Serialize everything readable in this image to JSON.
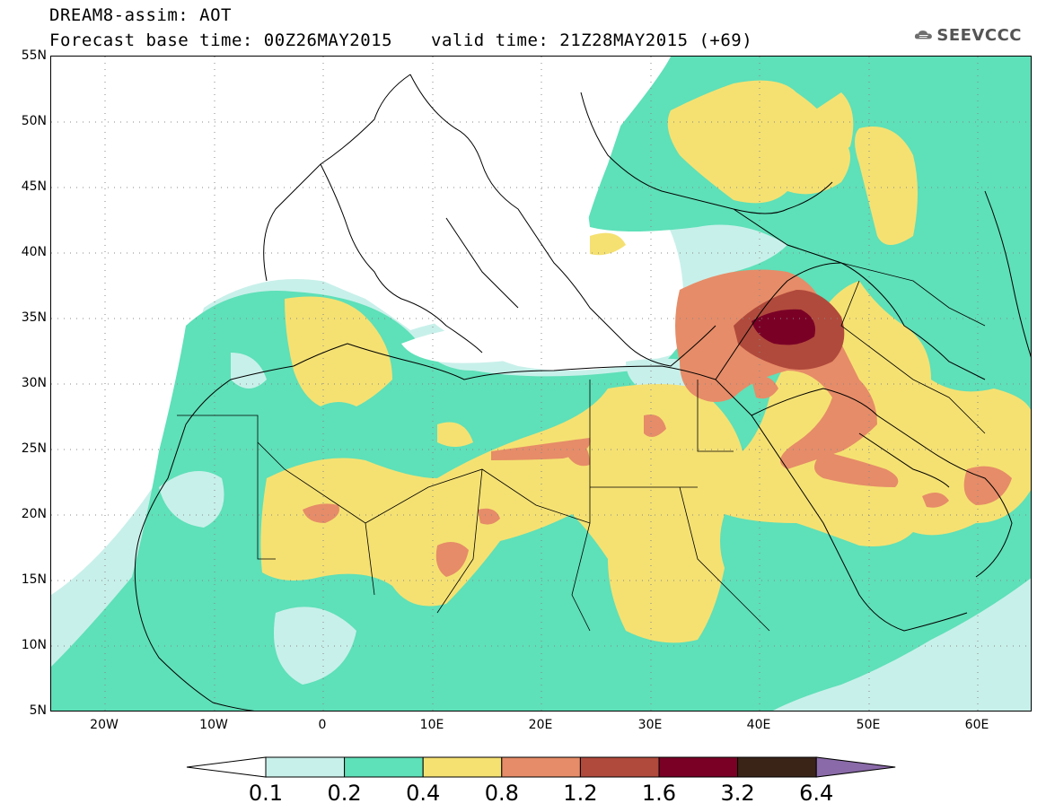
{
  "header": {
    "line1": "DREAM8-assim: AOT",
    "line2": "Forecast base time: 00Z26MAY2015",
    "valid": "valid time: 21Z28MAY2015 (+69)",
    "logo_text": "SEEVCCC",
    "logo_icon": "cloud-icon"
  },
  "map": {
    "lat_labels": [
      "55N",
      "50N",
      "45N",
      "40N",
      "35N",
      "30N",
      "25N",
      "20N",
      "15N",
      "10N",
      "5N"
    ],
    "lon_labels": [
      "20W",
      "10W",
      "0",
      "10E",
      "20E",
      "30E",
      "40E",
      "50E",
      "60E"
    ],
    "extent": {
      "lon": [
        -25,
        65
      ],
      "lat": [
        5,
        55
      ]
    }
  },
  "colorbar": {
    "labels": [
      "0.1",
      "0.2",
      "0.4",
      "0.8",
      "1.2",
      "1.6",
      "3.2",
      "6.4"
    ],
    "colors": [
      "#ffffff",
      "#c8f0ea",
      "#5ee0b8",
      "#f5e172",
      "#e68c68",
      "#b04a3c",
      "#7a0026",
      "#3a2418",
      "#8a6aa8"
    ]
  }
}
